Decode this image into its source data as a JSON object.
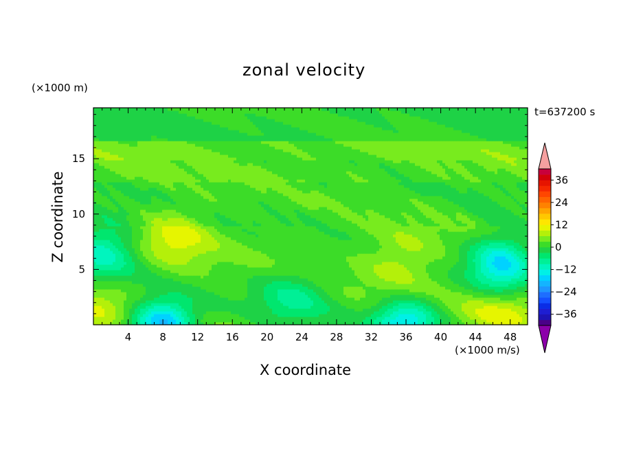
{
  "chart_data": {
    "type": "heatmap",
    "title": "zonal velocity",
    "xlabel": "X coordinate",
    "ylabel": "Z coordinate",
    "x_unit": "(×1000 m/s)",
    "y_unit": "(×1000 m)",
    "time_label": "t=637200 s",
    "xlim": [
      0,
      50
    ],
    "ylim": [
      0,
      19.6
    ],
    "x_ticks": [
      4,
      8,
      12,
      16,
      20,
      24,
      28,
      32,
      36,
      40,
      44,
      48
    ],
    "y_ticks": [
      5,
      10,
      15
    ],
    "colorbar": {
      "levels": [
        -42,
        -39,
        -36,
        -33,
        -30,
        -27,
        -24,
        -21,
        -18,
        -15,
        -12,
        -9,
        -6,
        -3,
        0,
        3,
        6,
        9,
        12,
        15,
        18,
        21,
        24,
        27,
        30,
        33,
        36,
        39,
        42
      ],
      "colors": [
        "#4b0088",
        "#1e14b4",
        "#1e1ed2",
        "#0a2de6",
        "#1450ff",
        "#1e6eff",
        "#1e96ff",
        "#14b4ff",
        "#00d2ff",
        "#00f0e6",
        "#00f5be",
        "#00f096",
        "#00e66e",
        "#1ed246",
        "#3cdc28",
        "#78eb1e",
        "#b4f00a",
        "#e6f500",
        "#ffe600",
        "#ffc800",
        "#ffa500",
        "#ff8200",
        "#ff6400",
        "#ff4600",
        "#f52800",
        "#e61400",
        "#d2000a",
        "#c8003c"
      ],
      "under_color": "#8c00aa",
      "over_color": "#f5a0a0",
      "tick_labels": [
        36,
        24,
        12,
        0,
        -12,
        -24,
        -36
      ]
    },
    "field_features": [
      {
        "type": "positive_core",
        "x": 9.5,
        "z": 8,
        "value": 9
      },
      {
        "type": "positive_core",
        "x": 35.5,
        "z": 6,
        "value": 7
      },
      {
        "type": "negative_core",
        "x": 8,
        "z": 0.3,
        "value": -20
      },
      {
        "type": "negative_core",
        "x": 36,
        "z": 0.3,
        "value": -16
      },
      {
        "type": "negative_core",
        "x": 47,
        "z": 5.5,
        "value": -16
      },
      {
        "type": "negative_core",
        "x": 1,
        "z": 6.8,
        "value": -11
      },
      {
        "type": "negative_core",
        "x": 23,
        "z": 2.5,
        "value": -7
      },
      {
        "type": "positive_core",
        "x": 0.5,
        "z": 1.5,
        "value": 7
      },
      {
        "type": "positive_core",
        "x": 47,
        "z": 1.2,
        "value": 9
      }
    ]
  }
}
